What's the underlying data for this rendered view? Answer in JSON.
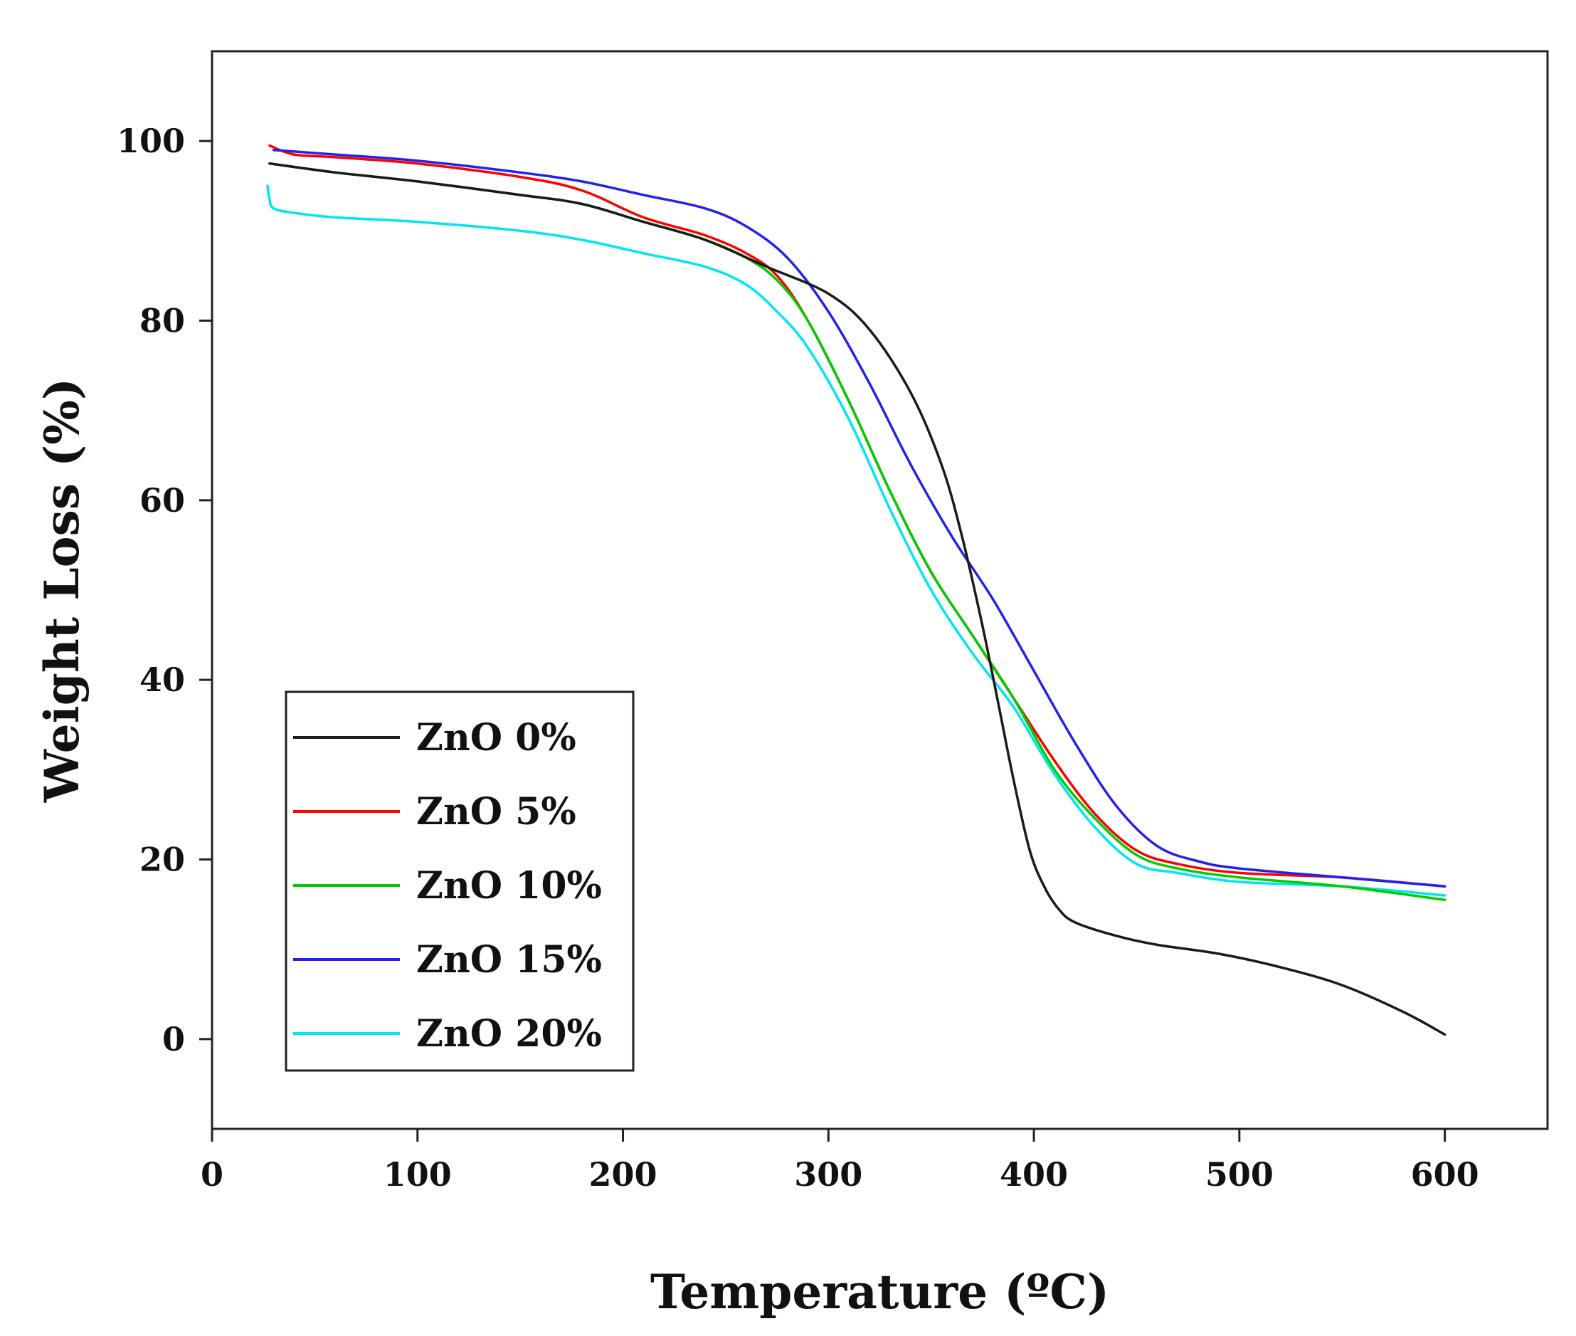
{
  "chart_data": {
    "type": "line",
    "title": "",
    "xlabel": "Temperature (ºC)",
    "ylabel": "Weight Loss (%)",
    "xlim": [
      0,
      650
    ],
    "ylim": [
      -10,
      110
    ],
    "xticks": [
      0,
      100,
      200,
      300,
      400,
      500,
      600
    ],
    "yticks": [
      0,
      20,
      40,
      60,
      80,
      100
    ],
    "legend_position": "bottom-left",
    "grid": false,
    "series": [
      {
        "name": "ZnO 0%",
        "color": "#1a1a1a",
        "x": [
          28,
          60,
          100,
          150,
          180,
          210,
          240,
          270,
          300,
          320,
          340,
          355,
          365,
          375,
          383,
          390,
          398,
          405,
          412,
          420,
          440,
          460,
          490,
          520,
          550,
          580,
          600
        ],
        "y": [
          97.5,
          96.5,
          95.5,
          94,
          93,
          91,
          89,
          86,
          83,
          79,
          72,
          64,
          56,
          46,
          37,
          29,
          21,
          17,
          14.5,
          13,
          11.5,
          10.5,
          9.5,
          8,
          6,
          3,
          0.5
        ]
      },
      {
        "name": "ZnO 5%",
        "color": "#ff0000",
        "x": [
          28,
          40,
          60,
          100,
          150,
          180,
          210,
          240,
          260,
          275,
          290,
          310,
          330,
          350,
          370,
          390,
          410,
          430,
          450,
          470,
          500,
          550,
          600
        ],
        "y": [
          99.5,
          98.5,
          98.2,
          97.5,
          96,
          94.5,
          91.5,
          89.5,
          87.5,
          85,
          80,
          71,
          61,
          52,
          45,
          38,
          31,
          25,
          21,
          19.5,
          18.5,
          18,
          17
        ]
      },
      {
        "name": "ZnO 10%",
        "color": "#00cc00",
        "x": [
          28,
          60,
          100,
          150,
          180,
          210,
          240,
          260,
          275,
          290,
          310,
          330,
          350,
          370,
          390,
          410,
          430,
          450,
          470,
          500,
          550,
          600
        ],
        "y": [
          97.5,
          96.5,
          95.5,
          94,
          93,
          91,
          89,
          87,
          84.5,
          80,
          71,
          61,
          52,
          45,
          38,
          30,
          24.5,
          20.5,
          19,
          18,
          17,
          15.5
        ]
      },
      {
        "name": "ZnO 15%",
        "color": "#2222ee",
        "x": [
          30,
          60,
          100,
          150,
          180,
          210,
          240,
          260,
          280,
          300,
          320,
          340,
          360,
          380,
          400,
          420,
          440,
          460,
          480,
          500,
          550,
          600
        ],
        "y": [
          99,
          98.5,
          97.8,
          96.5,
          95.5,
          94,
          92.5,
          90.5,
          87,
          81,
          73,
          64,
          56,
          49,
          41,
          33,
          26,
          21.5,
          19.8,
          19,
          18,
          17
        ]
      },
      {
        "name": "ZnO 20%",
        "color": "#00e6f0",
        "x": [
          27,
          28,
          30,
          40,
          60,
          100,
          150,
          180,
          210,
          240,
          260,
          275,
          290,
          310,
          330,
          350,
          370,
          390,
          410,
          430,
          450,
          470,
          500,
          550,
          600
        ],
        "y": [
          95,
          93.5,
          92.5,
          92,
          91.5,
          91,
          90,
          89,
          87.5,
          86,
          84,
          81,
          77,
          69,
          59,
          50,
          43,
          37,
          29.5,
          23.5,
          19.5,
          18.5,
          17.5,
          17,
          16
        ]
      }
    ]
  }
}
